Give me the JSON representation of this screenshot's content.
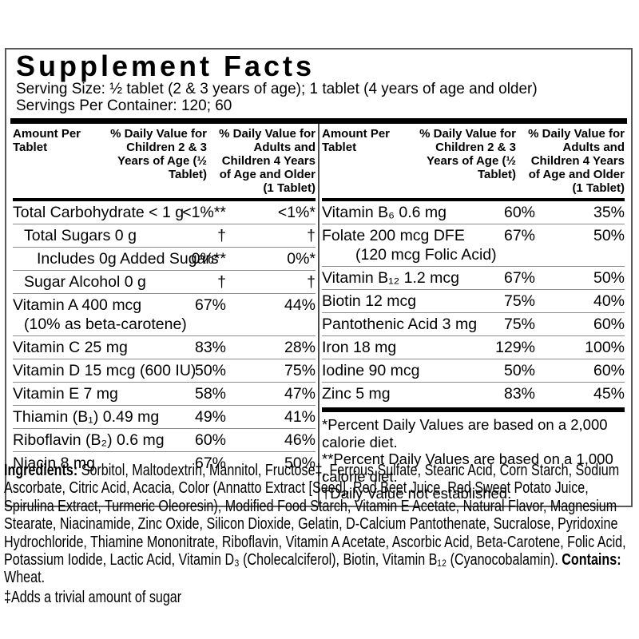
{
  "title": "Supplement Facts",
  "serving_size": "Serving Size: ½ tablet (2 & 3 years of age); 1 tablet (4 years of age and older)",
  "servings_per_container": "Servings Per Container: 120; 60",
  "header": {
    "amount": "Amount Per Tablet",
    "children": "% Daily Value for Children 2 & 3 Years of Age (½ Tablet)",
    "adults": "% Daily Value for Adults and Children 4 Years of Age and Older (1 Tablet)"
  },
  "left_rows": [
    {
      "name": "Total Carbohydrate < 1 g",
      "v1": "<1%**",
      "v2": "<1%*",
      "indent": 0
    },
    {
      "name": "Total Sugars 0 g",
      "v1": "†",
      "v2": "†",
      "indent": 1
    },
    {
      "name": "Includes 0g Added Sugars",
      "v1": "0%**",
      "v2": "0%*",
      "indent": 2
    },
    {
      "name": "Sugar Alcohol 0 g",
      "v1": "†",
      "v2": "†",
      "indent": 1
    },
    {
      "name": "Vitamin A 400 mcg",
      "name2": "(10% as beta-carotene)",
      "indent2": 1,
      "v1": "67%",
      "v2": "44%",
      "indent": 0
    },
    {
      "name": "Vitamin C 25 mg",
      "v1": "83%",
      "v2": "28%",
      "indent": 0
    },
    {
      "name": "Vitamin D 15 mcg (600 IU)",
      "v1": "50%",
      "v2": "75%",
      "indent": 0
    },
    {
      "name": "Vitamin E 7 mg",
      "v1": "58%",
      "v2": "47%",
      "indent": 0
    },
    {
      "name": "Thiamin (B₁) 0.49 mg",
      "v1": "49%",
      "v2": "41%",
      "indent": 0
    },
    {
      "name": "Riboflavin (B₂) 0.6 mg",
      "v1": "60%",
      "v2": "46%",
      "indent": 0
    },
    {
      "name": "Niacin 8 mg",
      "v1": "67%",
      "v2": "50%",
      "indent": 0
    }
  ],
  "right_rows": [
    {
      "name": "Vitamin B₆ 0.6 mg",
      "v1": "60%",
      "v2": "35%",
      "indent": 0
    },
    {
      "name": "Folate 200 mcg DFE",
      "name2": "(120 mcg Folic Acid)",
      "indent2": 3,
      "v1": "67%",
      "v2": "50%",
      "indent": 0
    },
    {
      "name": "Vitamin B₁₂ 1.2 mcg",
      "v1": "67%",
      "v2": "50%",
      "indent": 0
    },
    {
      "name": "Biotin 12 mcg",
      "v1": "75%",
      "v2": "40%",
      "indent": 0
    },
    {
      "name": "Pantothenic Acid 3 mg",
      "v1": "75%",
      "v2": "60%",
      "indent": 0
    },
    {
      "name": "Iron 18 mg",
      "v1": "129%",
      "v2": "100%",
      "indent": 0
    },
    {
      "name": "Iodine 90 mcg",
      "v1": "50%",
      "v2": "60%",
      "indent": 0
    },
    {
      "name": "Zinc 5 mg",
      "v1": "83%",
      "v2": "45%",
      "indent": 0
    }
  ],
  "footnotes": [
    "*Percent Daily Values are based on a 2,000 calorie diet.",
    "**Percent Daily Values are based on a 1,000 calorie diet.",
    "†Daily Value not established."
  ],
  "ingredients": {
    "label": "Ingredients:",
    "text": " Sorbitol, Maltodextrin, Mannitol, Fructose‡, Ferrous Sulfate, Stearic Acid, Corn Starch, Sodium Ascorbate, Citric Acid, Acacia, Color (Annatto Extract [Seed], Red Beet Juice, Red Sweet Potato Juice, Spirulina Extract, Turmeric Oleoresin), Modified Food Starch, Vitamin E Acetate, Natural Flavor, Magnesium Stearate, Niacinamide, Zinc Oxide, Silicon Dioxide, Gelatin, D-Calcium Pantothenate, Sucralose, Pyridoxine Hydrochloride, Thiamine Mononitrate, Riboflavin, Vitamin A Acetate, Ascorbic Acid, Beta-Carotene, Folic Acid, Potassium Iodide, Lactic Acid, Vitamin D₃ (Cholecalciferol), Biotin, Vitamin B₁₂ (Cyanocobalamin).  ",
    "contains_label": "Contains:",
    "contains_text": " Wheat."
  },
  "sugar_note": "‡Adds a trivial amount of sugar",
  "colors": {
    "panel_border": "#58595b",
    "row_rule": "#8c8c8c",
    "heavy_rule": "#000000",
    "background": "#ffffff",
    "text": "#000000"
  }
}
